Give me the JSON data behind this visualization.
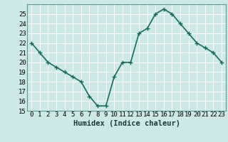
{
  "x": [
    0,
    1,
    2,
    3,
    4,
    5,
    6,
    7,
    8,
    9,
    10,
    11,
    12,
    13,
    14,
    15,
    16,
    17,
    18,
    19,
    20,
    21,
    22,
    23
  ],
  "y": [
    22,
    21,
    20,
    19.5,
    19,
    18.5,
    18,
    16.5,
    15.5,
    15.5,
    18.5,
    20,
    20,
    23,
    23.5,
    25,
    25.5,
    25,
    24,
    23,
    22,
    21.5,
    21,
    20
  ],
  "line_color": "#1a6b5a",
  "marker_color": "#1a6b5a",
  "bg_color": "#cce9e5",
  "grid_color": "#b0d4d0",
  "grid_major_color": "#ffffff",
  "xlabel": "Humidex (Indice chaleur)",
  "xlabel_fontsize": 7.5,
  "ylim": [
    15,
    26
  ],
  "xlim": [
    -0.5,
    23.5
  ],
  "yticks": [
    15,
    16,
    17,
    18,
    19,
    20,
    21,
    22,
    23,
    24,
    25
  ],
  "xtick_labels": [
    "0",
    "1",
    "2",
    "3",
    "4",
    "5",
    "6",
    "7",
    "8",
    "9",
    "10",
    "11",
    "12",
    "13",
    "14",
    "15",
    "16",
    "17",
    "18",
    "19",
    "20",
    "21",
    "22",
    "23"
  ],
  "tick_fontsize": 6.5,
  "line_width": 1.2,
  "marker_size": 2.5
}
